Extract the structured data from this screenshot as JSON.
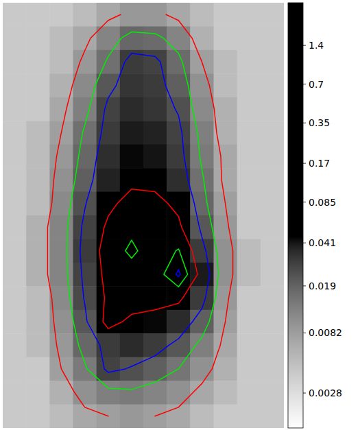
{
  "chart_data": {
    "type": "image",
    "tick_labels": false,
    "log": true,
    "cells": [
      [
        0.004,
        0.004,
        0.004,
        0.005,
        0.007,
        0.009,
        0.009,
        0.007,
        0.005,
        0.004,
        0.004,
        0.004
      ],
      [
        0.004,
        0.004,
        0.005,
        0.007,
        0.012,
        0.018,
        0.017,
        0.012,
        0.006,
        0.004,
        0.004,
        0.004
      ],
      [
        0.004,
        0.004,
        0.005,
        0.009,
        0.016,
        0.03,
        0.028,
        0.017,
        0.008,
        0.005,
        0.004,
        0.004
      ],
      [
        0.004,
        0.004,
        0.006,
        0.011,
        0.022,
        0.032,
        0.03,
        0.02,
        0.01,
        0.005,
        0.004,
        0.004
      ],
      [
        0.004,
        0.004,
        0.007,
        0.013,
        0.028,
        0.035,
        0.032,
        0.024,
        0.011,
        0.006,
        0.004,
        0.004
      ],
      [
        0.004,
        0.005,
        0.008,
        0.016,
        0.03,
        0.04,
        0.038,
        0.028,
        0.013,
        0.006,
        0.004,
        0.004
      ],
      [
        0.004,
        0.005,
        0.009,
        0.018,
        0.034,
        0.045,
        0.042,
        0.03,
        0.014,
        0.007,
        0.004,
        0.004
      ],
      [
        0.004,
        0.005,
        0.01,
        0.02,
        0.038,
        0.05,
        0.048,
        0.034,
        0.016,
        0.007,
        0.004,
        0.004
      ],
      [
        0.004,
        0.005,
        0.011,
        0.024,
        0.05,
        0.08,
        0.075,
        0.05,
        0.018,
        0.008,
        0.004,
        0.004
      ],
      [
        0.004,
        0.006,
        0.012,
        0.028,
        0.07,
        0.12,
        0.1,
        0.07,
        0.022,
        0.009,
        0.004,
        0.004
      ],
      [
        0.004,
        0.006,
        0.012,
        0.03,
        0.09,
        0.18,
        0.09,
        0.16,
        0.03,
        0.01,
        0.005,
        0.004
      ],
      [
        0.004,
        0.006,
        0.012,
        0.028,
        0.08,
        0.1,
        0.09,
        0.35,
        0.04,
        0.01,
        0.005,
        0.004
      ],
      [
        0.004,
        0.005,
        0.011,
        0.026,
        0.07,
        0.09,
        0.08,
        0.07,
        0.03,
        0.009,
        0.004,
        0.004
      ],
      [
        0.004,
        0.005,
        0.01,
        0.022,
        0.08,
        0.05,
        0.045,
        0.035,
        0.02,
        0.008,
        0.004,
        0.004
      ],
      [
        0.004,
        0.005,
        0.009,
        0.018,
        0.03,
        0.035,
        0.03,
        0.022,
        0.013,
        0.007,
        0.004,
        0.004
      ],
      [
        0.004,
        0.004,
        0.008,
        0.014,
        0.028,
        0.024,
        0.02,
        0.015,
        0.01,
        0.006,
        0.004,
        0.004
      ],
      [
        0.004,
        0.004,
        0.006,
        0.01,
        0.013,
        0.014,
        0.012,
        0.01,
        0.007,
        0.005,
        0.004,
        0.004
      ],
      [
        0.004,
        0.004,
        0.005,
        0.007,
        0.008,
        0.009,
        0.008,
        0.007,
        0.005,
        0.004,
        0.004,
        0.004
      ]
    ],
    "contours": [
      {
        "level": 0.008,
        "color": "#ff0000"
      },
      {
        "level": 0.015,
        "color": "#00ee00"
      },
      {
        "level": 0.025,
        "color": "#0000ff"
      },
      {
        "level": 0.06,
        "color": "#ff0000"
      },
      {
        "level": 0.15,
        "color": "#00ee00"
      },
      {
        "level": 0.3,
        "color": "#0000ff"
      }
    ],
    "colorbar_range": [
      0.0015,
      3.0
    ],
    "colorbar_ticks": [
      1.4,
      0.7,
      0.35,
      0.17,
      0.085,
      0.041,
      0.019,
      0.0082,
      0.0028
    ]
  }
}
